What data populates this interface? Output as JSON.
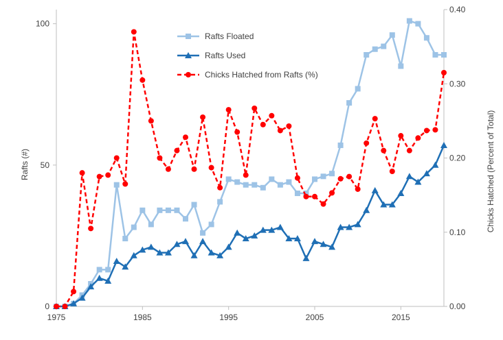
{
  "chart_data": {
    "type": "line",
    "title": "",
    "xlabel": "",
    "ylabel_left": "Rafts (#)",
    "ylabel_right": "Chicks Hatched (Percent of Total)",
    "xlim": [
      1975,
      2020
    ],
    "ylim_left": [
      0,
      105
    ],
    "ylim_right": [
      0,
      0.4
    ],
    "x_ticks": [
      "1975",
      "1985",
      "1995",
      "2005",
      "2015"
    ],
    "x_tick_values": [
      1975,
      1985,
      1995,
      2005,
      2015
    ],
    "y_ticks_left": [
      "0",
      "50",
      "100"
    ],
    "y_tick_values_left": [
      0,
      50,
      100
    ],
    "y_ticks_right": [
      "0.00",
      "0.10",
      "0.20",
      "0.30",
      "0.40"
    ],
    "y_tick_values_right": [
      0,
      0.1,
      0.2,
      0.3,
      0.4
    ],
    "legend_position": "top-center",
    "grid": false,
    "x": [
      1975,
      1976,
      1977,
      1978,
      1979,
      1980,
      1981,
      1982,
      1983,
      1984,
      1985,
      1986,
      1987,
      1988,
      1989,
      1990,
      1991,
      1992,
      1993,
      1994,
      1995,
      1996,
      1997,
      1998,
      1999,
      2000,
      2001,
      2002,
      2003,
      2004,
      2005,
      2006,
      2007,
      2008,
      2009,
      2010,
      2011,
      2012,
      2013,
      2014,
      2015,
      2016,
      2017,
      2018,
      2019,
      2020
    ],
    "series": [
      {
        "name": "Rafts Floated",
        "axis": "left",
        "color": "#9dc3e6",
        "marker": "square",
        "dashed": false,
        "values": [
          0,
          0,
          1,
          4,
          8,
          13,
          13,
          43,
          24,
          28,
          34,
          29,
          34,
          34,
          34,
          31,
          36,
          26,
          29,
          37,
          45,
          44,
          43,
          43,
          42,
          45,
          43,
          44,
          40,
          40,
          45,
          46,
          47,
          57,
          72,
          77,
          89,
          91,
          92,
          96,
          85,
          101,
          100,
          95,
          89,
          89
        ]
      },
      {
        "name": "Rafts Used",
        "axis": "left",
        "color": "#1f6fb5",
        "marker": "triangle",
        "dashed": false,
        "values": [
          0,
          0,
          1,
          3,
          7,
          10,
          9,
          16,
          14,
          18,
          20,
          21,
          19,
          19,
          22,
          23,
          18,
          23,
          19,
          18,
          21,
          26,
          24,
          25,
          27,
          27,
          28,
          24,
          24,
          17,
          23,
          22,
          21,
          28,
          28,
          29,
          34,
          41,
          36,
          36,
          40,
          46,
          44,
          47,
          50,
          57
        ]
      },
      {
        "name": "Chicks Hatched from Rafts (%)",
        "axis": "right",
        "color": "#ff0000",
        "marker": "circle",
        "dashed": true,
        "values": [
          0,
          0,
          0.02,
          0.18,
          0.105,
          0.175,
          0.177,
          0.2,
          0.165,
          0.37,
          0.305,
          0.25,
          0.2,
          0.185,
          0.21,
          0.228,
          0.185,
          0.255,
          0.187,
          0.16,
          0.265,
          0.235,
          0.177,
          0.267,
          0.245,
          0.257,
          0.237,
          0.243,
          0.173,
          0.148,
          0.148,
          0.138,
          0.153,
          0.172,
          0.175,
          0.158,
          0.22,
          0.253,
          0.21,
          0.182,
          0.23,
          0.21,
          0.227,
          0.237,
          0.238,
          0.315
        ]
      }
    ]
  }
}
